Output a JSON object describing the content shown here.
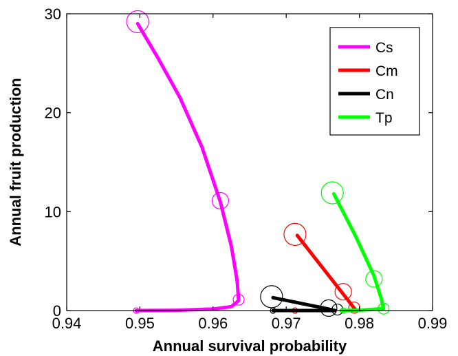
{
  "chart_data": {
    "type": "line",
    "xlabel": "Annual survival probability",
    "ylabel": "Annual fruit production",
    "xlim": [
      0.94,
      0.99
    ],
    "ylim": [
      0,
      30
    ],
    "x_ticks": [
      0.94,
      0.95,
      0.96,
      0.97,
      0.98,
      0.99
    ],
    "x_tick_labels": [
      "0.94",
      "0.95",
      "0.96",
      "0.97",
      "0.98",
      "0.99"
    ],
    "y_ticks": [
      0,
      10,
      20,
      30
    ],
    "y_tick_labels": [
      "0",
      "10",
      "20",
      "30"
    ],
    "grid": false,
    "legend_position": "top-right",
    "series": [
      {
        "name": "Cs",
        "color": "#ff00ff",
        "x": [
          0.9497,
          0.9525,
          0.9555,
          0.9585,
          0.961,
          0.9625,
          0.9633,
          0.9635,
          0.9625,
          0.96,
          0.955,
          0.9495
        ],
        "y": [
          29.0,
          25.5,
          21.5,
          16.5,
          11.0,
          6.5,
          3.0,
          1.0,
          0.4,
          0.15,
          0.03,
          0.0
        ],
        "markers": [
          {
            "x": 0.9497,
            "y": 29.2,
            "size": "large"
          },
          {
            "x": 0.961,
            "y": 11.1,
            "size": "medium"
          },
          {
            "x": 0.9635,
            "y": 1.1,
            "size": "small"
          },
          {
            "x": 0.9495,
            "y": 0.0,
            "size": "tiny"
          }
        ]
      },
      {
        "name": "Cm",
        "color": "#ff0000",
        "x": [
          0.9715,
          0.9795
        ],
        "y": [
          7.6,
          0.05
        ],
        "markers": [
          {
            "x": 0.9712,
            "y": 7.7,
            "size": "large"
          },
          {
            "x": 0.9778,
            "y": 1.9,
            "size": "medium"
          },
          {
            "x": 0.9793,
            "y": 0.3,
            "size": "small"
          },
          {
            "x": 0.9712,
            "y": 0.0,
            "size": "tiny"
          }
        ]
      },
      {
        "name": "Cn",
        "color": "#000000",
        "x": [
          0.9682,
          0.9758,
          0.9767,
          0.9682
        ],
        "y": [
          1.3,
          0.15,
          0.0,
          0.0
        ],
        "markers": [
          {
            "x": 0.968,
            "y": 1.4,
            "size": "large"
          },
          {
            "x": 0.9758,
            "y": 0.25,
            "size": "medium"
          },
          {
            "x": 0.977,
            "y": 0.1,
            "size": "small"
          },
          {
            "x": 0.9682,
            "y": 0.0,
            "size": "tiny"
          }
        ]
      },
      {
        "name": "Tp",
        "color": "#00ff00",
        "x": [
          0.9765,
          0.9795,
          0.982,
          0.983,
          0.9833,
          0.9805,
          0.9775
        ],
        "y": [
          11.8,
          7.5,
          3.5,
          1.2,
          0.2,
          0.05,
          0.0
        ],
        "markers": [
          {
            "x": 0.9763,
            "y": 11.9,
            "size": "large"
          },
          {
            "x": 0.982,
            "y": 3.2,
            "size": "medium"
          },
          {
            "x": 0.9833,
            "y": 0.2,
            "size": "small"
          },
          {
            "x": 0.9778,
            "y": 0.0,
            "size": "tiny"
          }
        ]
      }
    ]
  }
}
